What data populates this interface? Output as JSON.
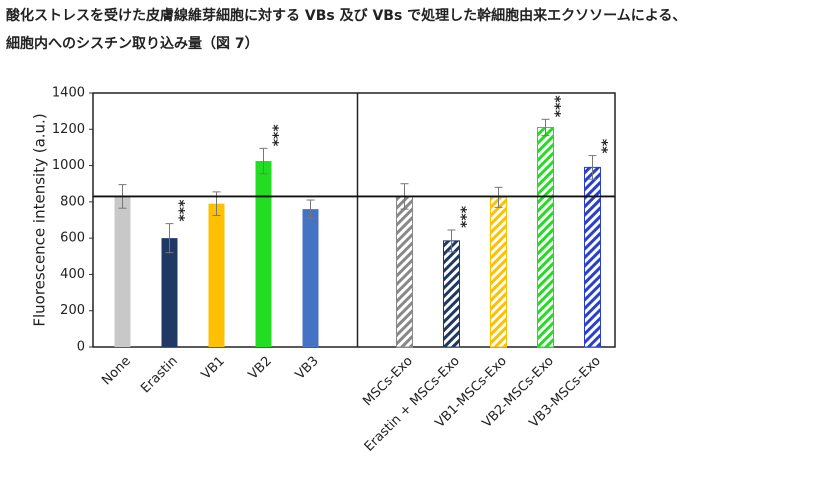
{
  "chart_data": {
    "type": "bar",
    "title_lines": [
      "酸化ストレスを受けた皮膚線維芽細胞に対する VBs 及び VBs で処理した幹細胞由来エクソソームによる、",
      "細胞内へのシスチン取り込み量（図 7）"
    ],
    "y_label": "Fluorescence intensity (a.u.)",
    "categories": [
      "None",
      "Erastin",
      "VB1",
      "VB2",
      "VB3",
      null,
      "MSCs-Exo",
      "Erastin + MSCs-Exo",
      "VB1-MSCs-Exo",
      "VB2-MSCs-Exo",
      "VB3-MSCs-Exo"
    ],
    "values": [
      830,
      600,
      790,
      1025,
      760,
      null,
      830,
      585,
      825,
      1210,
      990
    ],
    "errors": [
      65,
      80,
      65,
      70,
      50,
      null,
      70,
      60,
      55,
      45,
      65
    ],
    "colors": [
      "#c8c8c8",
      "#1f3864",
      "#ffc000",
      "#22dd22",
      "#4472c4",
      null,
      "#888888",
      "#1f3864",
      "#ffc000",
      "#22dd22",
      "#2a3fd0"
    ],
    "hatched": [
      false,
      false,
      false,
      false,
      false,
      null,
      true,
      true,
      true,
      true,
      true
    ],
    "annotations": [
      null,
      "***",
      null,
      "***",
      null,
      null,
      null,
      "***",
      null,
      "***",
      "**"
    ],
    "reference_line": 830,
    "ylim": [
      0,
      1400
    ],
    "yticks": [
      0,
      200,
      400,
      600,
      800,
      1000,
      1200,
      1400
    ]
  }
}
